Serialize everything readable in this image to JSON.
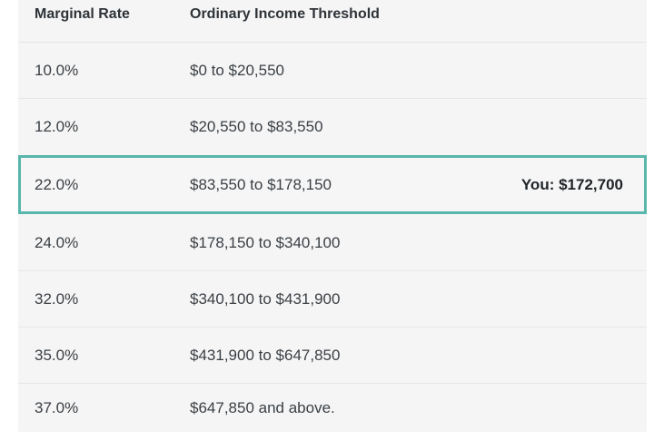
{
  "table": {
    "headers": {
      "rate": "Marginal Rate",
      "threshold": "Ordinary Income Threshold"
    },
    "rows": [
      {
        "rate": "10.0%",
        "range": "$0 to $20,550",
        "you": ""
      },
      {
        "rate": "12.0%",
        "range": "$20,550 to $83,550",
        "you": ""
      },
      {
        "rate": "22.0%",
        "range": "$83,550 to $178,150",
        "you": "You: $172,700",
        "highlighted": true
      },
      {
        "rate": "24.0%",
        "range": "$178,150 to $340,100",
        "you": ""
      },
      {
        "rate": "32.0%",
        "range": "$340,100 to $431,900",
        "you": ""
      },
      {
        "rate": "35.0%",
        "range": "$431,900 to $647,850",
        "you": ""
      },
      {
        "rate": "37.0%",
        "range": "$647,850 and above.",
        "you": ""
      }
    ]
  },
  "colors": {
    "highlight_border": "#58b6ab",
    "table_background": "#f5f5f5"
  }
}
